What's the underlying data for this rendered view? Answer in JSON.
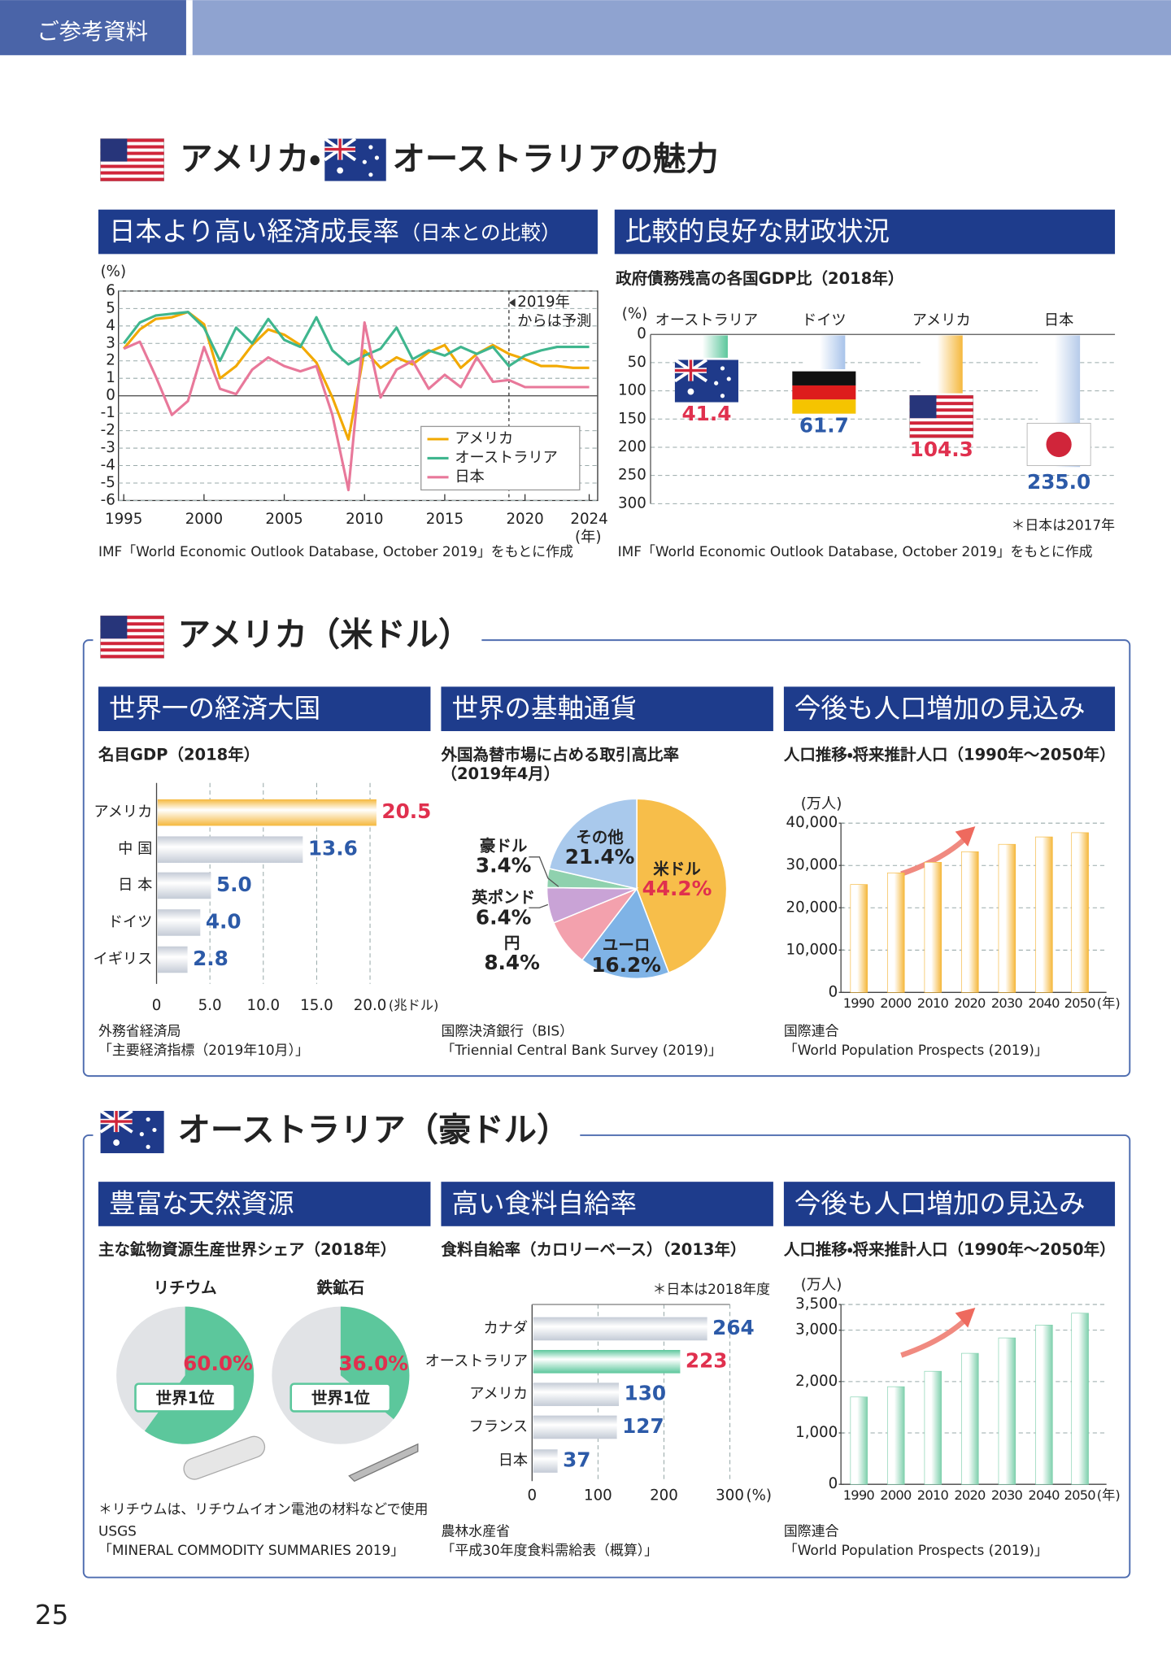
{
  "header": {
    "tag": "ご参考資料"
  },
  "page_number": "25",
  "sections": [
    {
      "title_parts": [
        "アメリカ・",
        "オーストラリアの魅力"
      ]
    },
    {
      "title": "アメリカ（米ドル）"
    },
    {
      "title": "オーストラリア（豪ドル）"
    }
  ],
  "chart_data": [
    {
      "type": "line",
      "title": "日本より高い経済成長率",
      "title_note": "（日本との比較）",
      "y_label": "(%)",
      "x_label": "(年)",
      "x": [
        1995,
        1996,
        1997,
        1998,
        1999,
        2000,
        2001,
        2002,
        2003,
        2004,
        2005,
        2006,
        2007,
        2008,
        2009,
        2010,
        2011,
        2012,
        2013,
        2014,
        2015,
        2016,
        2017,
        2018,
        2019,
        2020,
        2021,
        2022,
        2023,
        2024
      ],
      "xlim": [
        1995,
        2024
      ],
      "xticks": [
        1995,
        2000,
        2005,
        2010,
        2015,
        2020,
        2024
      ],
      "ylim": [
        -6,
        6
      ],
      "yticks": [
        -6,
        -5,
        -4,
        -3,
        -2,
        -1,
        0,
        1,
        2,
        3,
        4,
        5,
        6
      ],
      "grid": true,
      "forecast_from": 2019,
      "annotation": [
        "2019年",
        "からは予測"
      ],
      "legend": "bottom-right",
      "series": [
        {
          "name": "アメリカ",
          "color": "#f2a900",
          "values": [
            2.7,
            3.8,
            4.4,
            4.5,
            4.8,
            4.1,
            1.0,
            1.7,
            2.9,
            3.8,
            3.5,
            2.9,
            1.9,
            -0.1,
            -2.5,
            2.6,
            1.6,
            2.2,
            1.8,
            2.5,
            2.9,
            1.6,
            2.4,
            2.9,
            2.4,
            2.1,
            1.7,
            1.7,
            1.6,
            1.6
          ]
        },
        {
          "name": "オーストラリア",
          "color": "#3fb68e",
          "values": [
            3.0,
            4.2,
            4.6,
            4.7,
            4.8,
            3.9,
            2.0,
            3.9,
            3.0,
            4.4,
            3.2,
            2.8,
            4.5,
            2.6,
            1.8,
            2.3,
            2.7,
            3.9,
            2.1,
            2.6,
            2.3,
            2.8,
            2.4,
            2.8,
            1.7,
            2.3,
            2.6,
            2.8,
            2.8,
            2.8
          ]
        },
        {
          "name": "日本",
          "color": "#e8789a",
          "values": [
            2.7,
            3.1,
            1.1,
            -1.1,
            -0.3,
            2.8,
            0.4,
            0.1,
            1.5,
            2.2,
            1.7,
            1.4,
            1.7,
            -1.1,
            -5.4,
            4.2,
            -0.1,
            1.5,
            2.0,
            0.4,
            1.2,
            0.5,
            2.2,
            0.8,
            0.9,
            0.5,
            0.5,
            0.5,
            0.5,
            0.5
          ]
        }
      ],
      "source": [
        "IMF「World Economic Outlook Database, October 2019」をもとに作成"
      ]
    },
    {
      "type": "hanging-bar",
      "title": "比較的良好な財政状況",
      "subtitle": "政府債務残高の各国GDP比（2018年）",
      "y_label": "(%)",
      "categories": [
        "オーストラリア",
        "ドイツ",
        "アメリカ",
        "日本"
      ],
      "values": [
        41.4,
        61.7,
        104.3,
        235.0
      ],
      "value_labels": [
        "41.4",
        "61.7",
        "104.3",
        "235.0"
      ],
      "colors": [
        "#5cc79c",
        "#a8c3ea",
        "#f5b83d",
        "#b6cbea"
      ],
      "label_colors": [
        "#e0304e",
        "#2c5aa8",
        "#e0304e",
        "#2c5aa8"
      ],
      "ylim": [
        0,
        300
      ],
      "inverted": true,
      "yticks": [
        0,
        50,
        100,
        150,
        200,
        250,
        300
      ],
      "grid": true,
      "note": "＊日本は2017年",
      "source": [
        "IMF「World Economic Outlook Database, October 2019」をもとに作成"
      ]
    },
    {
      "type": "hbar",
      "title": "世界一の経済大国",
      "subtitle": "名目GDP（2018年）",
      "categories": [
        "アメリカ",
        "中 国",
        "日 本",
        "ドイツ",
        "イギリス"
      ],
      "values": [
        20.5,
        13.6,
        5.0,
        4.0,
        2.8
      ],
      "value_labels": [
        "20.5",
        "13.6",
        "5.0",
        "4.0",
        "2.8"
      ],
      "colors": [
        "#f5b83d",
        "#c4cbd6",
        "#c4cbd6",
        "#c4cbd6",
        "#c4cbd6"
      ],
      "label_colors": [
        "#e0304e",
        "#2c5aa8",
        "#2c5aa8",
        "#2c5aa8",
        "#2c5aa8"
      ],
      "xlim": [
        0,
        22
      ],
      "xticks": [
        0,
        {
          "value": 5,
          "label": "5.0"
        },
        {
          "value": 10,
          "label": "10.0"
        },
        {
          "value": 15,
          "label": "15.0"
        },
        {
          "value": 20,
          "label": "20.0"
        }
      ],
      "x_label": "(兆ドル)",
      "grid": true,
      "source": [
        "外務省経済局",
        "「主要経済指標（2019年10月）」"
      ]
    },
    {
      "type": "pie",
      "title": "世界の基軸通貨",
      "subtitle": [
        "外国為替市場に占める取引高比率",
        "（2019年4月）"
      ],
      "categories": [
        "米ドル",
        "ユーロ",
        "円",
        "英ポンド",
        "豪ドル",
        "その他"
      ],
      "values": [
        44.2,
        16.2,
        8.4,
        6.4,
        3.4,
        21.4
      ],
      "value_labels": [
        "44.2%",
        "16.2%",
        "8.4%",
        "6.4%",
        "3.4%",
        "21.4%"
      ],
      "colors": [
        "#f7be4a",
        "#7fb3e6",
        "#f3a1ad",
        "#c9a3d6",
        "#8fd1ae",
        "#a9c9ec"
      ],
      "source": [
        "国際決済銀行（BIS）",
        "「Triennial Central Bank Survey (2019)」"
      ]
    },
    {
      "type": "vbar",
      "title": "今後も人口増加の見込み",
      "subtitle": "人口推移・将来推計人口（1990年～2050年）",
      "y_label": "(万人)",
      "x_label": "(年)",
      "categories": [
        "1990",
        "2000",
        "2010",
        "2020",
        "2030",
        "2040",
        "2050"
      ],
      "values": [
        25500,
        28250,
        30750,
        33250,
        35000,
        36750,
        37750
      ],
      "color": "#f5b83d",
      "ylim": [
        0,
        40000
      ],
      "yticks": [
        0,
        {
          "value": 10000,
          "label": "10,000"
        },
        {
          "value": 20000,
          "label": "20,000"
        },
        {
          "value": 30000,
          "label": "30,000"
        },
        {
          "value": 40000,
          "label": "40,000"
        }
      ],
      "grid": true,
      "source": [
        "国際連合",
        "「World Population Prospects (2019)」"
      ]
    },
    {
      "type": "share-pies",
      "title": "豊富な天然資源",
      "subtitle": "主な鉱物資源生産世界シェア（2018年）",
      "categories": [
        "リチウム",
        "鉄鉱石"
      ],
      "values": [
        60.0,
        36.0
      ],
      "value_labels": [
        "60.0%",
        "36.0%"
      ],
      "color": "#5cc79c",
      "badge": "世界1位",
      "note": "＊リチウムは、リチウムイオン電池の材料などで使用",
      "source": [
        "USGS",
        "「MINERAL COMMODITY SUMMARIES 2019」"
      ]
    },
    {
      "type": "hbar",
      "title": "高い食料自給率",
      "subtitle": "食料自給率（カロリーベース）（2013年）",
      "categories": [
        "カナダ",
        "オーストラリア",
        "アメリカ",
        "フランス",
        "日本"
      ],
      "values": [
        264,
        223,
        130,
        127,
        37
      ],
      "colors": [
        "#c4cbd6",
        "#5cc79c",
        "#c4cbd6",
        "#c4cbd6",
        "#c4cbd6"
      ],
      "label_colors": [
        "#2c5aa8",
        "#e0304e",
        "#2c5aa8",
        "#2c5aa8",
        "#2c5aa8"
      ],
      "xlim": [
        0,
        300
      ],
      "xticks": [
        0,
        100,
        200,
        300
      ],
      "x_label": "(%)",
      "grid": true,
      "note": "＊日本は2018年度",
      "source": [
        "農林水産省",
        "「平成30年度食料需給表（概算）」"
      ]
    },
    {
      "type": "vbar",
      "title": "今後も人口増加の見込み",
      "subtitle": "人口推移・将来推計人口（1990年～2050年）",
      "y_label": "(万人)",
      "x_label": "(年)",
      "categories": [
        "1990",
        "2000",
        "2010",
        "2020",
        "2030",
        "2040",
        "2050"
      ],
      "values": [
        1700,
        1900,
        2200,
        2550,
        2850,
        3100,
        3330
      ],
      "color": "#7fd0ad",
      "ylim": [
        0,
        3500
      ],
      "yticks": [
        0,
        {
          "value": 1000,
          "label": "1,000"
        },
        {
          "value": 2000,
          "label": "2,000"
        },
        {
          "value": 3000,
          "label": "3,000"
        },
        {
          "value": 3500,
          "label": "3,500"
        }
      ],
      "grid": true,
      "source": [
        "国際連合",
        "「World Population Prospects (2019)」"
      ]
    }
  ]
}
